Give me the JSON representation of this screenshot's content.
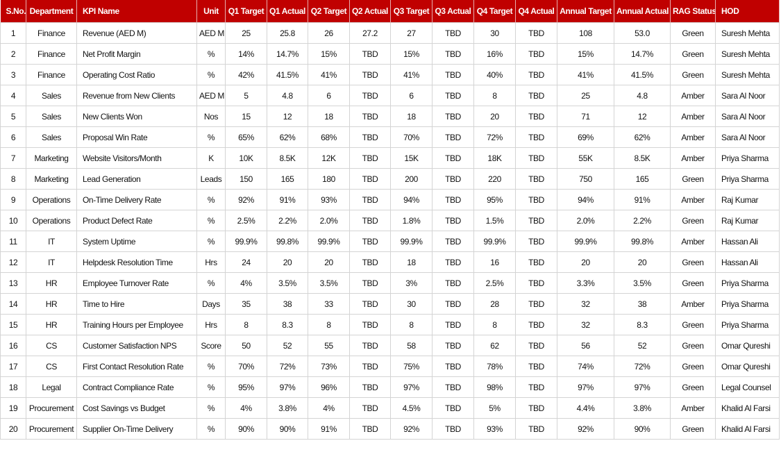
{
  "table": {
    "headers": [
      "S.No.",
      "Department",
      "KPI Name",
      "Unit",
      "Q1 Target",
      "Q1 Actual",
      "Q2 Target",
      "Q2 Actual",
      "Q3 Target",
      "Q3 Actual",
      "Q4 Target",
      "Q4 Actual",
      "Annual Target",
      "Annual Actual",
      "RAG Status",
      "HOD"
    ],
    "rows": [
      [
        "1",
        "Finance",
        "Revenue (AED M)",
        "AED M",
        "25",
        "25.8",
        "26",
        "27.2",
        "27",
        "TBD",
        "30",
        "TBD",
        "108",
        "53.0",
        "Green",
        "Suresh Mehta"
      ],
      [
        "2",
        "Finance",
        "Net Profit Margin",
        "%",
        "14%",
        "14.7%",
        "15%",
        "TBD",
        "15%",
        "TBD",
        "16%",
        "TBD",
        "15%",
        "14.7%",
        "Green",
        "Suresh Mehta"
      ],
      [
        "3",
        "Finance",
        "Operating Cost Ratio",
        "%",
        "42%",
        "41.5%",
        "41%",
        "TBD",
        "41%",
        "TBD",
        "40%",
        "TBD",
        "41%",
        "41.5%",
        "Green",
        "Suresh Mehta"
      ],
      [
        "4",
        "Sales",
        "Revenue from New Clients",
        "AED M",
        "5",
        "4.8",
        "6",
        "TBD",
        "6",
        "TBD",
        "8",
        "TBD",
        "25",
        "4.8",
        "Amber",
        "Sara Al Noor"
      ],
      [
        "5",
        "Sales",
        "New Clients Won",
        "Nos",
        "15",
        "12",
        "18",
        "TBD",
        "18",
        "TBD",
        "20",
        "TBD",
        "71",
        "12",
        "Amber",
        "Sara Al Noor"
      ],
      [
        "6",
        "Sales",
        "Proposal Win Rate",
        "%",
        "65%",
        "62%",
        "68%",
        "TBD",
        "70%",
        "TBD",
        "72%",
        "TBD",
        "69%",
        "62%",
        "Amber",
        "Sara Al Noor"
      ],
      [
        "7",
        "Marketing",
        "Website Visitors/Month",
        "K",
        "10K",
        "8.5K",
        "12K",
        "TBD",
        "15K",
        "TBD",
        "18K",
        "TBD",
        "55K",
        "8.5K",
        "Amber",
        "Priya Sharma"
      ],
      [
        "8",
        "Marketing",
        "Lead Generation",
        "Leads",
        "150",
        "165",
        "180",
        "TBD",
        "200",
        "TBD",
        "220",
        "TBD",
        "750",
        "165",
        "Green",
        "Priya Sharma"
      ],
      [
        "9",
        "Operations",
        "On-Time Delivery Rate",
        "%",
        "92%",
        "91%",
        "93%",
        "TBD",
        "94%",
        "TBD",
        "95%",
        "TBD",
        "94%",
        "91%",
        "Amber",
        "Raj Kumar"
      ],
      [
        "10",
        "Operations",
        "Product Defect Rate",
        "%",
        "2.5%",
        "2.2%",
        "2.0%",
        "TBD",
        "1.8%",
        "TBD",
        "1.5%",
        "TBD",
        "2.0%",
        "2.2%",
        "Green",
        "Raj Kumar"
      ],
      [
        "11",
        "IT",
        "System Uptime",
        "%",
        "99.9%",
        "99.8%",
        "99.9%",
        "TBD",
        "99.9%",
        "TBD",
        "99.9%",
        "TBD",
        "99.9%",
        "99.8%",
        "Amber",
        "Hassan Ali"
      ],
      [
        "12",
        "IT",
        "Helpdesk Resolution Time",
        "Hrs",
        "24",
        "20",
        "20",
        "TBD",
        "18",
        "TBD",
        "16",
        "TBD",
        "20",
        "20",
        "Green",
        "Hassan Ali"
      ],
      [
        "13",
        "HR",
        "Employee Turnover Rate",
        "%",
        "4%",
        "3.5%",
        "3.5%",
        "TBD",
        "3%",
        "TBD",
        "2.5%",
        "TBD",
        "3.3%",
        "3.5%",
        "Green",
        "Priya Sharma"
      ],
      [
        "14",
        "HR",
        "Time to Hire",
        "Days",
        "35",
        "38",
        "33",
        "TBD",
        "30",
        "TBD",
        "28",
        "TBD",
        "32",
        "38",
        "Amber",
        "Priya Sharma"
      ],
      [
        "15",
        "HR",
        "Training Hours per Employee",
        "Hrs",
        "8",
        "8.3",
        "8",
        "TBD",
        "8",
        "TBD",
        "8",
        "TBD",
        "32",
        "8.3",
        "Green",
        "Priya Sharma"
      ],
      [
        "16",
        "CS",
        "Customer Satisfaction NPS",
        "Score",
        "50",
        "52",
        "55",
        "TBD",
        "58",
        "TBD",
        "62",
        "TBD",
        "56",
        "52",
        "Green",
        "Omar Qureshi"
      ],
      [
        "17",
        "CS",
        "First Contact Resolution Rate",
        "%",
        "70%",
        "72%",
        "73%",
        "TBD",
        "75%",
        "TBD",
        "78%",
        "TBD",
        "74%",
        "72%",
        "Green",
        "Omar Qureshi"
      ],
      [
        "18",
        "Legal",
        "Contract Compliance Rate",
        "%",
        "95%",
        "97%",
        "96%",
        "TBD",
        "97%",
        "TBD",
        "98%",
        "TBD",
        "97%",
        "97%",
        "Green",
        "Legal Counsel"
      ],
      [
        "19",
        "Procurement",
        "Cost Savings vs Budget",
        "%",
        "4%",
        "3.8%",
        "4%",
        "TBD",
        "4.5%",
        "TBD",
        "5%",
        "TBD",
        "4.4%",
        "3.8%",
        "Amber",
        "Khalid Al Farsi"
      ],
      [
        "20",
        "Procurement",
        "Supplier On-Time Delivery",
        "%",
        "90%",
        "90%",
        "91%",
        "TBD",
        "92%",
        "TBD",
        "93%",
        "TBD",
        "92%",
        "90%",
        "Green",
        "Khalid Al Farsi"
      ]
    ]
  }
}
